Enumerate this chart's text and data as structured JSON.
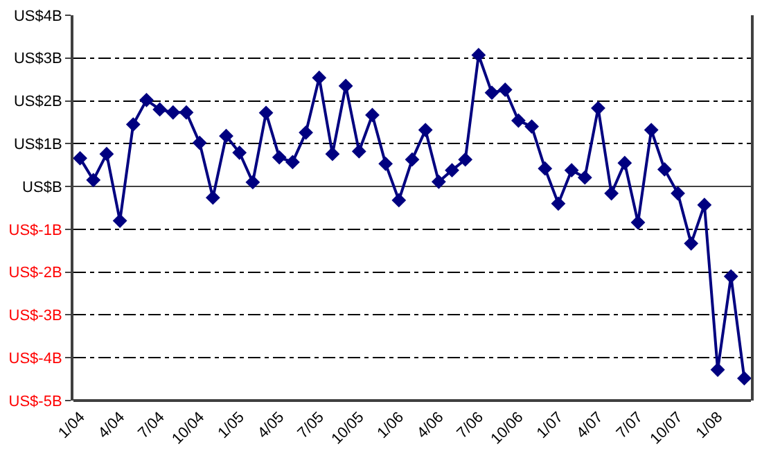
{
  "chart_data": {
    "type": "line",
    "categories": [
      "1/04",
      null,
      null,
      "4/04",
      null,
      null,
      "7/04",
      null,
      null,
      "10/04",
      null,
      null,
      "1/05",
      null,
      null,
      "4/05",
      null,
      null,
      "7/05",
      null,
      null,
      "10/05",
      null,
      null,
      "1/06",
      null,
      null,
      "4/06",
      null,
      null,
      "7/06",
      null,
      null,
      "10/06",
      null,
      null,
      "1/07",
      null,
      null,
      "4/07",
      null,
      null,
      "7/07",
      null,
      null,
      "10/07",
      null,
      null,
      "1/08",
      null,
      null
    ],
    "series": [
      {
        "color": "#000080",
        "values": [
          0.66,
          0.15,
          0.76,
          -0.8,
          1.45,
          2.02,
          1.8,
          1.73,
          1.73,
          1.02,
          -0.26,
          1.18,
          0.79,
          0.1,
          1.72,
          0.68,
          0.57,
          1.26,
          2.54,
          0.76,
          2.35,
          0.82,
          1.67,
          0.53,
          -0.32,
          0.63,
          1.32,
          0.11,
          0.38,
          0.63,
          3.07,
          2.19,
          2.26,
          1.54,
          1.4,
          0.42,
          -0.4,
          0.38,
          0.21,
          1.83,
          -0.16,
          0.55,
          -0.84,
          1.32,
          0.4,
          -0.16,
          -1.33,
          -0.43,
          -4.28,
          -2.1,
          -4.48
        ]
      }
    ],
    "ylim": [
      -5,
      4
    ],
    "yticks": [
      {
        "value": -5,
        "label": "US$-5B"
      },
      {
        "value": -4,
        "label": "US$-4B"
      },
      {
        "value": -3,
        "label": "US$-3B"
      },
      {
        "value": -2,
        "label": "US$-2B"
      },
      {
        "value": -1,
        "label": "US$-1B"
      },
      {
        "value": 0,
        "label": "US$B"
      },
      {
        "value": 1,
        "label": "US$1B"
      },
      {
        "value": 2,
        "label": "US$2B"
      },
      {
        "value": 3,
        "label": "US$3B"
      },
      {
        "value": 4,
        "label": "US$4B"
      }
    ],
    "grid": "y",
    "legend": false,
    "marker": "diamond",
    "line_style": "solid"
  }
}
